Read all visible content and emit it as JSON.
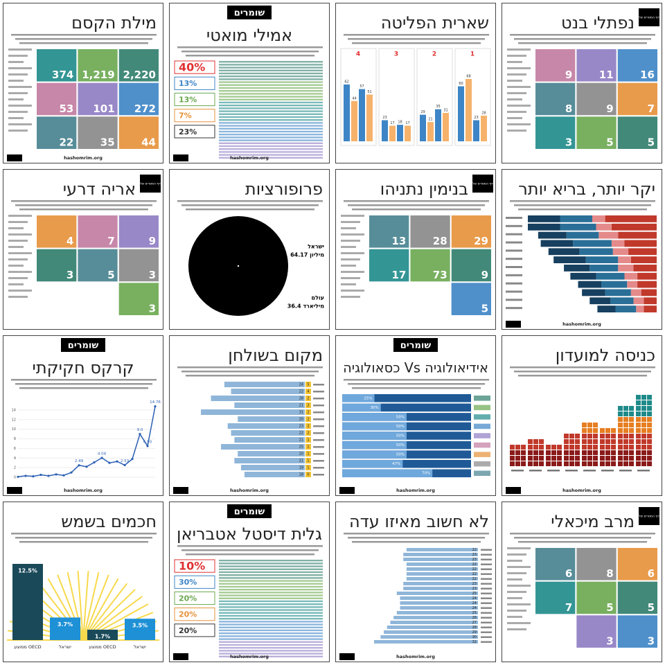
{
  "tiles": [
    {
      "title": "מילת הקסם",
      "blocks": [
        "2,220",
        "1,219",
        "374",
        "272",
        "101",
        "53",
        "44",
        "35",
        "22"
      ],
      "footer": "hashomrim.org"
    },
    {
      "logo": "שומרים",
      "title": "אמילי מואטי",
      "figures": [
        "40%",
        "13%",
        "13%",
        "7%",
        "23%"
      ],
      "footer": "hashomrim.org"
    },
    {
      "title": "שארית הפליטה",
      "panels": [
        {
          "label": "4",
          "values": [
            62,
            44,
            57,
            51
          ]
        },
        {
          "label": "3",
          "values": [
            23,
            17,
            18,
            17
          ]
        },
        {
          "label": "2",
          "values": [
            29,
            21,
            35,
            31
          ]
        },
        {
          "label": "1",
          "values": [
            60,
            68,
            23,
            28
          ]
        }
      ]
    },
    {
      "badge": "דף המסרים של",
      "title": "נפתלי בנט",
      "blocks": [
        "16",
        "11",
        "9",
        "7",
        "9",
        "8",
        "5",
        "5",
        "3"
      ]
    },
    {
      "badge": "דף המסרים של",
      "title": "אריה דרעי",
      "blocks": [
        "9",
        "7",
        "4",
        "3",
        "5",
        "3",
        "3"
      ]
    },
    {
      "title": "פרופורציות",
      "labels": [
        "ישראל",
        "64.17 מיליון",
        "עולם",
        "36.4 מיליארד"
      ]
    },
    {
      "badge": "דף המסרים של",
      "title": "בנימין נתניהו",
      "blocks": [
        "29",
        "28",
        "13",
        "9",
        "73",
        "17",
        "5"
      ]
    },
    {
      "title": "יקר יותר, בריא יותר",
      "colors": [
        "#c0392b",
        "#e58a8a",
        "#2a6f97",
        "#173f5f"
      ],
      "rows": [
        [
          40,
          10,
          25,
          25
        ],
        [
          35,
          12,
          28,
          25
        ],
        [
          30,
          15,
          25,
          22
        ],
        [
          25,
          10,
          30,
          25
        ],
        [
          22,
          12,
          26,
          24
        ],
        [
          20,
          10,
          25,
          25
        ],
        [
          18,
          12,
          22,
          20
        ],
        [
          15,
          10,
          22,
          20
        ],
        [
          15,
          8,
          20,
          18
        ],
        [
          12,
          8,
          20,
          18
        ],
        [
          10,
          8,
          18,
          16
        ],
        [
          10,
          6,
          16,
          14
        ]
      ],
      "footer": "hashomrim.org"
    },
    {
      "logo": "שומרים",
      "title": "קרקס חקיקתי",
      "line": {
        "ylim": [
          0,
          16
        ],
        "yticks": [
          0,
          2,
          4,
          6,
          8,
          10,
          12,
          14
        ],
        "values": [
          0.1,
          0.3,
          0.2,
          0.5,
          0.3,
          0.6,
          0.4,
          1.0,
          2.49,
          2.2,
          3.1,
          4.04,
          3.0,
          3.3,
          2.53,
          3.8,
          9.0,
          6.5,
          14.76
        ],
        "value_labels": [
          null,
          null,
          null,
          null,
          null,
          null,
          null,
          null,
          "2.49",
          null,
          null,
          "4.04",
          null,
          null,
          "2.53",
          null,
          "9.0",
          "6.50",
          "14.76"
        ]
      },
      "footer": "hashomrim.org"
    },
    {
      "title": "מקום בשולחן",
      "bars": [
        24,
        22,
        28,
        21,
        31,
        20,
        23,
        22,
        21,
        25,
        20,
        21,
        19,
        18
      ],
      "minor": [
        5,
        4,
        2,
        2,
        2,
        2,
        2,
        2,
        1,
        1,
        1,
        1,
        1,
        0
      ],
      "footer": "hashomrim.org"
    },
    {
      "logo": "שומרים",
      "title": "כסאולוגיה Vs אידיאולוגיה",
      "bars": [
        25,
        30,
        50,
        50,
        50,
        50,
        50,
        47,
        70
      ],
      "value_labels": [
        "25%",
        "30%",
        "50%",
        "50%",
        "50%",
        "50%",
        "50%",
        "47%",
        "70%"
      ],
      "footer": "hashomrim.org"
    },
    {
      "title": "כניסה למועדון",
      "columns": [
        4,
        5,
        4,
        6,
        8,
        7,
        11,
        13
      ],
      "footer": "hashomrim.org"
    },
    {
      "title": "חכמים בשמש",
      "categories": [
        "ממוצע OECD",
        "ישראל",
        "ממוצע OECD",
        "ישראל"
      ],
      "bars": [
        12.5,
        3.7,
        1.7,
        3.5
      ],
      "value_labels": [
        "12.5%",
        "3.7%",
        "1.7%",
        "3.5%"
      ]
    },
    {
      "logo": "שומרים",
      "title": "גלית דיסטל אטבריאן",
      "figures": [
        "10%",
        "30%",
        "20%",
        "20%",
        "20%"
      ],
      "footer": "hashomrim.org"
    },
    {
      "title": "לא חשוב מאיזו עדה",
      "bars": [
        22,
        23,
        23,
        22,
        22,
        22,
        22,
        23,
        23,
        25,
        24,
        24,
        24,
        25,
        26,
        27,
        28,
        29,
        30,
        32
      ],
      "footer": "hashomrim.org"
    },
    {
      "badge": "דף המסרים של",
      "title": "מרב מיכאלי",
      "blocks": [
        "6",
        "8",
        "6",
        "5",
        "5",
        "7",
        "3",
        "3"
      ]
    }
  ]
}
